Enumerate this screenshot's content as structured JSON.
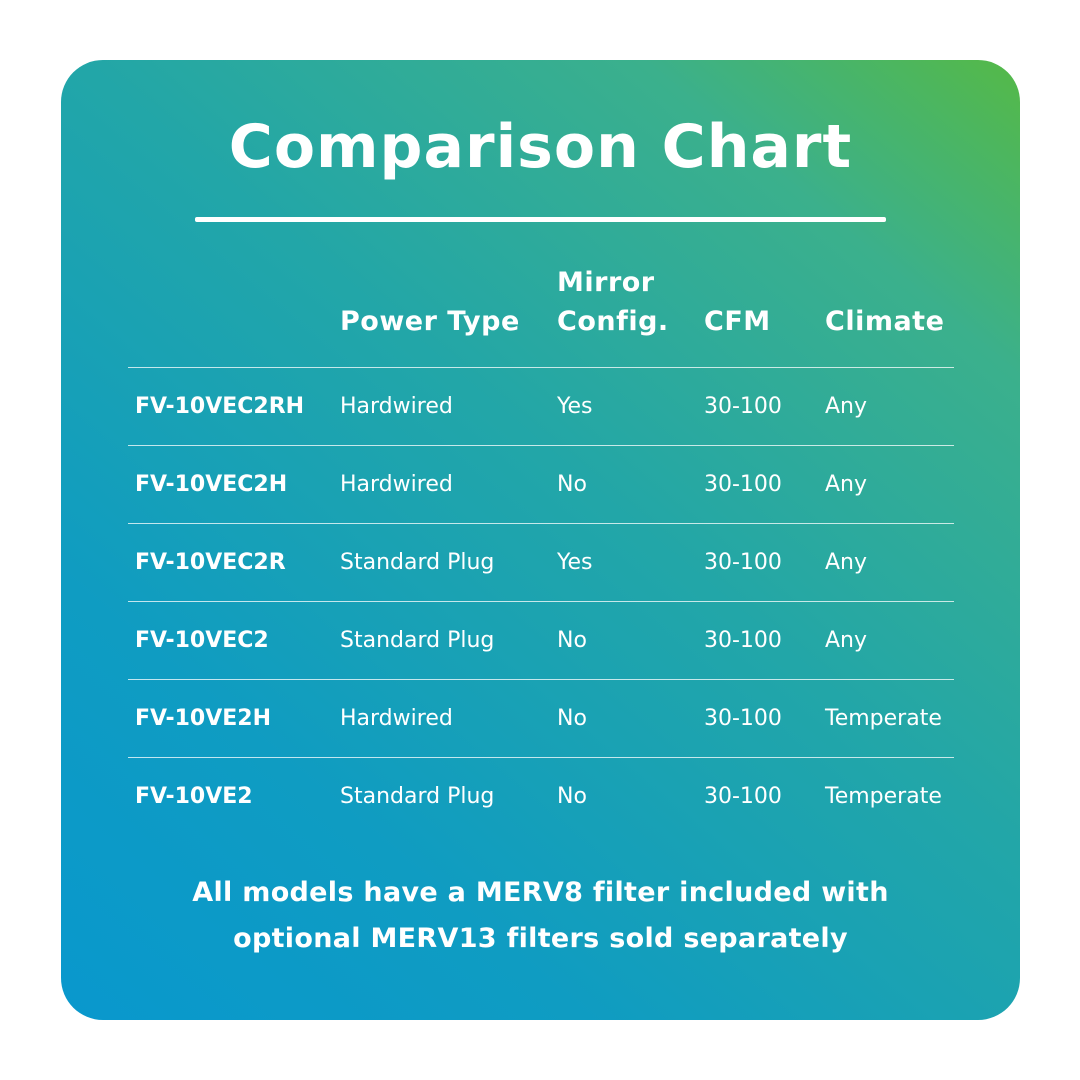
{
  "title": "Comparison Chart",
  "table": {
    "headers": {
      "power": "Power Type",
      "mirror_line1": "Mirror",
      "mirror_line2": "Config.",
      "cfm": "CFM",
      "climate": "Climate"
    },
    "rows": [
      {
        "model": "FV-10VEC2RH",
        "power": "Hardwired",
        "mirror": "Yes",
        "cfm": "30-100",
        "climate": "Any"
      },
      {
        "model": "FV-10VEC2H",
        "power": "Hardwired",
        "mirror": "No",
        "cfm": "30-100",
        "climate": "Any"
      },
      {
        "model": "FV-10VEC2R",
        "power": "Standard Plug",
        "mirror": "Yes",
        "cfm": "30-100",
        "climate": "Any"
      },
      {
        "model": "FV-10VEC2",
        "power": "Standard Plug",
        "mirror": "No",
        "cfm": "30-100",
        "climate": "Any"
      },
      {
        "model": "FV-10VE2H",
        "power": "Hardwired",
        "mirror": "No",
        "cfm": "30-100",
        "climate": "Temperate"
      },
      {
        "model": "FV-10VE2",
        "power": "Standard Plug",
        "mirror": "No",
        "cfm": "30-100",
        "climate": "Temperate"
      }
    ]
  },
  "footnote": {
    "line1": "All models have a MERV8 filter included with",
    "line2": "optional MERV13 filters sold separately"
  },
  "colors": {
    "gradient_top_right": "#55b947",
    "gradient_bottom_left": "#0998cd",
    "text": "#ffffff"
  }
}
